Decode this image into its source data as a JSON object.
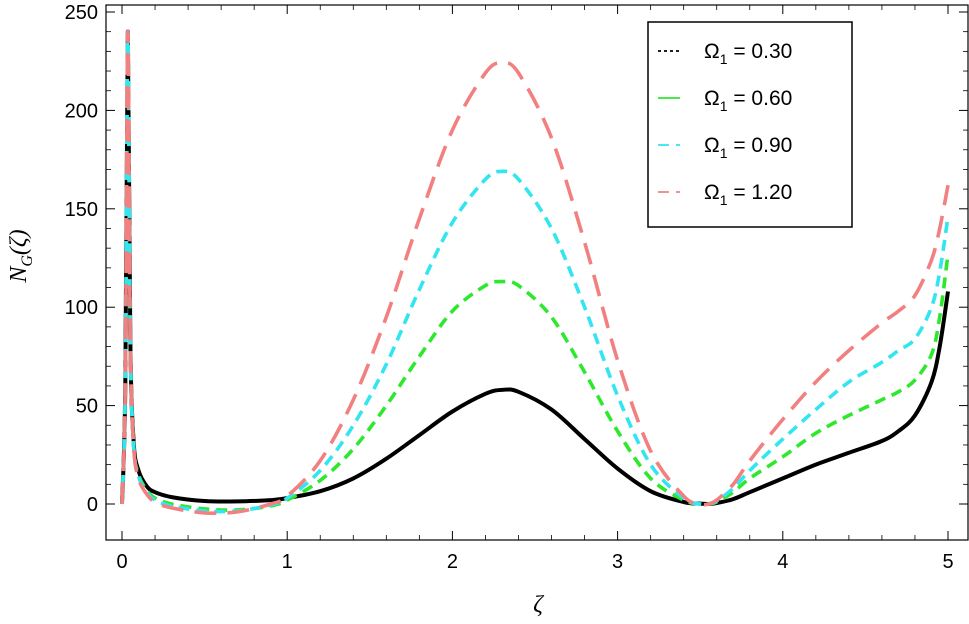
{
  "chart_data": {
    "type": "line",
    "xlabel": "ζ",
    "ylabel": "N_G(ζ)",
    "ylabel_parts": {
      "main": "N",
      "sub": "G",
      "rest": "(ζ)"
    },
    "xlim": [
      0,
      5
    ],
    "ylim": [
      0,
      250
    ],
    "x_ticks": [
      0,
      1,
      2,
      3,
      4,
      5
    ],
    "y_ticks": [
      0,
      50,
      100,
      150,
      200,
      250
    ],
    "x_tick_labels": [
      "0",
      "1",
      "2",
      "3",
      "4",
      "5"
    ],
    "y_tick_labels": [
      "0",
      "50",
      "100",
      "150",
      "200",
      "250"
    ],
    "grid": false,
    "legend_position": "top-right",
    "series": [
      {
        "name": "Ω1 = 0.30",
        "legend_symbol": "Ω",
        "legend_sub": "1",
        "legend_value": "= 0.30",
        "color": "#000000",
        "dash": "solid",
        "legend_dash": "dotted",
        "x": [
          0,
          0.02,
          0.035,
          0.05,
          0.07,
          0.1,
          0.15,
          0.2,
          0.3,
          0.5,
          0.7,
          0.9,
          1.0,
          1.2,
          1.4,
          1.6,
          1.8,
          2.0,
          2.2,
          2.3,
          2.4,
          2.6,
          2.8,
          3.0,
          3.2,
          3.4,
          3.5,
          3.55,
          3.6,
          3.7,
          3.8,
          4.0,
          4.2,
          4.4,
          4.6,
          4.7,
          4.8,
          4.9,
          4.95,
          5.0
        ],
        "y": [
          0,
          60,
          240,
          85,
          32,
          17,
          9,
          6,
          3.5,
          1.5,
          1.3,
          2,
          3,
          6.5,
          13,
          23,
          35,
          47,
          56,
          58,
          57,
          48,
          33,
          18,
          6.5,
          1,
          0.2,
          0,
          0.5,
          2.5,
          6,
          13,
          20,
          26,
          32,
          37,
          45,
          62,
          80,
          108
        ]
      },
      {
        "name": "Ω1 = 0.60",
        "legend_symbol": "Ω",
        "legend_sub": "1",
        "legend_value": "= 0.60",
        "color": "#2ee82e",
        "dash": "dashed",
        "legend_dash": "solid",
        "x": [
          0,
          0.02,
          0.035,
          0.05,
          0.07,
          0.1,
          0.15,
          0.2,
          0.3,
          0.5,
          0.7,
          0.9,
          1.0,
          1.2,
          1.4,
          1.6,
          1.8,
          2.0,
          2.2,
          2.3,
          2.4,
          2.6,
          2.8,
          3.0,
          3.2,
          3.4,
          3.5,
          3.55,
          3.6,
          3.7,
          3.8,
          4.0,
          4.2,
          4.4,
          4.6,
          4.7,
          4.8,
          4.9,
          4.95,
          5.0
        ],
        "y": [
          0,
          60,
          240,
          85,
          30,
          15,
          7,
          3,
          0,
          -2.5,
          -3,
          -1,
          2,
          12,
          28,
          50,
          75,
          98,
          111,
          113,
          111,
          95,
          67,
          37,
          13,
          2,
          0,
          0,
          1,
          6,
          13,
          24,
          36,
          45,
          53,
          57,
          63,
          76,
          95,
          127
        ]
      },
      {
        "name": "Ω1 = 0.90",
        "legend_symbol": "Ω",
        "legend_sub": "1",
        "legend_value": "= 0.90",
        "color": "#33e5f0",
        "dash": "dashed",
        "legend_dash": "dashed",
        "x": [
          0,
          0.02,
          0.035,
          0.05,
          0.07,
          0.1,
          0.15,
          0.2,
          0.3,
          0.5,
          0.7,
          0.9,
          1.0,
          1.2,
          1.4,
          1.6,
          1.8,
          2.0,
          2.2,
          2.3,
          2.4,
          2.6,
          2.8,
          3.0,
          3.2,
          3.4,
          3.5,
          3.55,
          3.6,
          3.7,
          3.8,
          4.0,
          4.2,
          4.4,
          4.6,
          4.7,
          4.8,
          4.9,
          4.95,
          5.0
        ],
        "y": [
          0,
          60,
          240,
          85,
          30,
          14,
          6,
          2,
          -1,
          -3.5,
          -3.5,
          -0.5,
          3,
          17,
          40,
          71,
          109,
          143,
          165,
          169,
          165,
          140,
          100,
          55,
          20,
          3,
          0,
          0,
          1.5,
          8,
          17,
          33,
          48,
          62,
          72,
          78,
          84,
          100,
          118,
          146
        ]
      },
      {
        "name": "Ω1 = 1.20",
        "legend_symbol": "Ω",
        "legend_sub": "1",
        "legend_value": "= 1.20",
        "color": "#f28080",
        "dash": "longdash",
        "legend_dash": "dashed",
        "x": [
          0,
          0.02,
          0.035,
          0.05,
          0.07,
          0.1,
          0.15,
          0.2,
          0.3,
          0.5,
          0.7,
          0.9,
          1.0,
          1.2,
          1.4,
          1.6,
          1.8,
          2.0,
          2.2,
          2.3,
          2.4,
          2.6,
          2.8,
          3.0,
          3.2,
          3.4,
          3.5,
          3.55,
          3.6,
          3.7,
          3.8,
          4.0,
          4.2,
          4.4,
          4.6,
          4.7,
          4.8,
          4.9,
          4.95,
          5.0
        ],
        "y": [
          0,
          60,
          240,
          85,
          30,
          13,
          5,
          1,
          -2,
          -4.5,
          -4,
          0,
          4,
          22,
          53,
          95,
          145,
          190,
          219,
          224,
          219,
          186,
          133,
          73,
          27,
          4,
          0,
          0,
          2,
          10,
          22,
          43,
          62,
          78,
          92,
          98,
          106,
          124,
          140,
          162
        ]
      }
    ]
  }
}
